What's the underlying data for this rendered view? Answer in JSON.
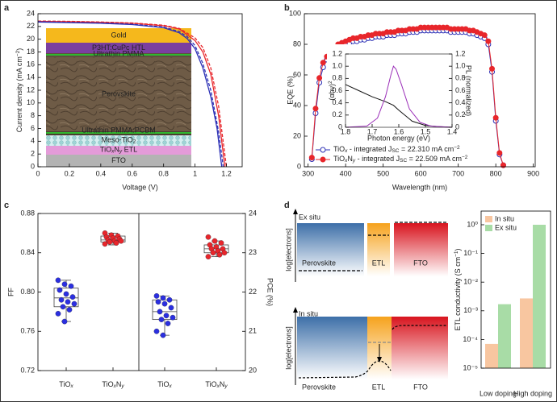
{
  "chart_data": [
    {
      "panel": "a",
      "type": "line",
      "xlabel": "Voltage (V)",
      "ylabel": [
        "Current density (mA cm",
        {
          "sup": "−2"
        },
        ")"
      ],
      "xlim": [
        0,
        1.3
      ],
      "xticks": [
        0,
        0.2,
        0.4,
        0.6,
        0.8,
        1.0,
        1.2
      ],
      "ylim": [
        0,
        24
      ],
      "yticks": [
        0,
        2,
        4,
        6,
        8,
        10,
        12,
        14,
        16,
        18,
        20,
        22,
        24
      ],
      "series": [
        {
          "color": "#e8262b",
          "dash": false,
          "x": [
            0,
            0.2,
            0.4,
            0.6,
            0.8,
            0.9,
            1.0,
            1.05,
            1.1,
            1.15,
            1.19
          ],
          "values": [
            22.8,
            22.75,
            22.65,
            22.5,
            22.1,
            21.6,
            19.8,
            18,
            14.5,
            8,
            0
          ]
        },
        {
          "color": "#e8262b",
          "dash": true,
          "x": [
            0,
            0.2,
            0.4,
            0.6,
            0.8,
            0.9,
            1.0,
            1.05,
            1.1,
            1.15,
            1.2
          ],
          "values": [
            22.85,
            22.8,
            22.7,
            22.55,
            22.2,
            21.7,
            20.2,
            18.7,
            15.5,
            9.5,
            0
          ]
        },
        {
          "color": "#2b2fb5",
          "dash": false,
          "x": [
            0,
            0.2,
            0.4,
            0.6,
            0.8,
            0.9,
            0.95,
            1.0,
            1.05,
            1.1,
            1.14,
            1.17
          ],
          "values": [
            22.7,
            22.6,
            22.5,
            22.3,
            21.8,
            21.0,
            20.1,
            18.5,
            15.5,
            11,
            6,
            0
          ]
        },
        {
          "color": "#2b2fb5",
          "dash": true,
          "x": [
            0,
            0.2,
            0.4,
            0.6,
            0.8,
            0.9,
            0.95,
            1.0,
            1.05,
            1.1,
            1.15,
            1.18
          ],
          "values": [
            22.75,
            22.65,
            22.55,
            22.35,
            21.9,
            21.2,
            20.4,
            19.0,
            16.2,
            12,
            5.5,
            0
          ]
        }
      ],
      "layers": [
        "Gold",
        "P3HT:CuPc HTL",
        "Ultrathin PMMA",
        "Perovskite",
        "Ultrathin PMMA:PCBM",
        [
          "Meso-TiO",
          {
            "sub": "2"
          }
        ],
        [
          "TiO",
          {
            "sub": "x"
          },
          "N",
          {
            "sub": "y"
          },
          " ETL"
        ],
        "FTO"
      ]
    },
    {
      "panel": "b",
      "type": "line",
      "xlabel": "Wavelength (nm)",
      "ylabel": "EQE (%)",
      "xlim": [
        290,
        905
      ],
      "xticks": [
        300,
        400,
        500,
        600,
        700,
        800,
        900
      ],
      "ylim": [
        0,
        100
      ],
      "yticks": [
        0,
        20,
        40,
        60,
        80,
        100
      ],
      "x": [
        310,
        320,
        330,
        340,
        350,
        360,
        370,
        380,
        390,
        400,
        410,
        420,
        430,
        440,
        450,
        460,
        470,
        480,
        490,
        500,
        510,
        520,
        530,
        540,
        550,
        560,
        570,
        580,
        590,
        600,
        610,
        620,
        630,
        640,
        650,
        660,
        670,
        680,
        690,
        700,
        710,
        720,
        730,
        740,
        750,
        760,
        770,
        780,
        790,
        800,
        810,
        820
      ],
      "series": [
        {
          "name": [
            "TiO",
            {
              "sub": "x"
            },
            " - integrated J",
            {
              "sub": "SC"
            },
            " = 22.310 mA cm",
            {
              "sup": "−2"
            }
          ],
          "color": "#2b2fb5",
          "filled": false,
          "values": [
            5,
            35,
            55,
            65,
            70,
            73,
            76,
            78,
            79,
            80,
            81,
            82,
            82,
            83,
            83,
            84,
            84,
            85,
            85,
            85,
            86,
            86,
            86,
            87,
            87,
            87,
            88,
            88,
            88,
            89,
            89,
            89,
            89,
            89,
            89,
            89,
            89,
            88,
            88,
            88,
            88,
            88,
            87,
            87,
            86,
            85,
            84,
            80,
            62,
            30,
            8,
            1
          ]
        },
        {
          "name": [
            "TiO",
            {
              "sub": "x"
            },
            "N",
            {
              "sub": "y"
            },
            " - integrated J",
            {
              "sub": "SC"
            },
            " = 22.509 mA cm",
            {
              "sup": "−2"
            }
          ],
          "color": "#e8262b",
          "filled": true,
          "values": [
            6,
            38,
            58,
            68,
            72,
            75,
            78,
            80,
            81,
            82,
            83,
            84,
            84,
            85,
            85,
            86,
            86,
            87,
            87,
            87,
            88,
            88,
            88,
            89,
            89,
            89,
            90,
            90,
            90,
            91,
            91,
            91,
            91,
            91,
            91,
            91,
            91,
            90,
            90,
            90,
            90,
            90,
            89,
            89,
            88,
            87,
            86,
            82,
            64,
            32,
            9,
            1
          ]
        }
      ]
    },
    {
      "type": "line",
      "xlabel": "Photon energy (eV)",
      "ylabel": [
        "(αhν)",
        {
          "sup": "2"
        }
      ],
      "y2label": "PL (normalized)",
      "xlim": [
        1.8,
        1.4
      ],
      "xticks": [
        1.8,
        1.7,
        1.6,
        1.5,
        1.4
      ],
      "ylim": [
        0,
        1.2
      ],
      "yticks": [
        0,
        0.2,
        0.4,
        0.6,
        0.8,
        {
          "value": 1,
          "label": "1.0"
        },
        1.2
      ],
      "y2lim": [
        0,
        1.2
      ],
      "y2ticks": [
        0,
        0.2,
        0.4,
        0.6,
        0.8,
        {
          "value": 1,
          "label": "1.0"
        },
        1.2
      ],
      "series": [
        {
          "color": "#111111",
          "axis": "y",
          "x": [
            1.8,
            1.75,
            1.7,
            1.65,
            1.62,
            1.6,
            1.55,
            1.5,
            1.45,
            1.4
          ],
          "values": [
            0.7,
            0.6,
            0.5,
            0.42,
            0.36,
            0.28,
            0.1,
            0.03,
            0.01,
            0
          ]
        },
        {
          "color": "#9b2fb8",
          "axis": "y2",
          "x": [
            1.8,
            1.72,
            1.68,
            1.65,
            1.63,
            1.62,
            1.61,
            1.59,
            1.56,
            1.52,
            1.48,
            1.4
          ],
          "values": [
            0,
            0.02,
            0.15,
            0.5,
            0.85,
            1.0,
            0.95,
            0.7,
            0.3,
            0.08,
            0.02,
            0
          ]
        }
      ]
    },
    {
      "panel": "c",
      "type": "box",
      "ylabel": "FF",
      "y2label": "PCE (%)",
      "ylim": [
        0.72,
        0.88
      ],
      "yticks": [
        0.72,
        0.76,
        {
          "value": 0.8,
          "label": "0.80"
        },
        0.84,
        0.88
      ],
      "y2lim": [
        20,
        24
      ],
      "y2ticks": [
        20,
        21,
        22,
        23,
        24
      ],
      "categories": [
        [
          "TiO",
          {
            "sub": "x"
          }
        ],
        [
          "TiO",
          {
            "sub": "x"
          },
          "N",
          {
            "sub": "y"
          }
        ],
        [
          "TiO",
          {
            "sub": "x"
          }
        ],
        [
          "TiO",
          {
            "sub": "x"
          },
          "N",
          {
            "sub": "y"
          }
        ]
      ],
      "boxes": [
        {
          "axis": "y",
          "color": "#2b2fe0",
          "whisker_low": 0.77,
          "q1": 0.785,
          "median": 0.794,
          "q3": 0.804,
          "whisker_high": 0.812,
          "points": [
            0.812,
            0.808,
            0.806,
            0.802,
            0.798,
            0.795,
            0.792,
            0.79,
            0.788,
            0.785,
            0.782,
            0.778,
            0.77
          ]
        },
        {
          "axis": "y",
          "color": "#e8262b",
          "whisker_low": 0.848,
          "q1": 0.851,
          "median": 0.853,
          "q3": 0.857,
          "whisker_high": 0.86,
          "points": [
            0.86,
            0.858,
            0.857,
            0.856,
            0.855,
            0.854,
            0.853,
            0.852,
            0.852,
            0.851,
            0.85,
            0.849
          ]
        },
        {
          "axis": "y2",
          "color": "#2b2fe0",
          "whisker_low": 20.9,
          "q1": 21.3,
          "median": 21.5,
          "q3": 21.8,
          "whisker_high": 21.9,
          "points": [
            21.9,
            21.85,
            21.8,
            21.75,
            21.7,
            21.6,
            21.5,
            21.4,
            21.35,
            21.3,
            21.2,
            21.0,
            20.9
          ]
        },
        {
          "axis": "y2",
          "color": "#e8262b",
          "whisker_low": 22.9,
          "q1": 23.0,
          "median": 23.1,
          "q3": 23.2,
          "whisker_high": 23.3,
          "points": [
            23.4,
            23.3,
            23.25,
            23.2,
            23.15,
            23.1,
            23.1,
            23.05,
            23.0,
            23.0,
            22.95,
            22.9
          ]
        }
      ]
    },
    {
      "type": "bar",
      "log": true,
      "ylabel": [
        "ETL conductivity (S cm",
        {
          "sup": "−1"
        },
        ")"
      ],
      "ylim": [
        1e-05,
        3
      ],
      "yticks": [
        {
          "value": 1e-05,
          "label": "10⁻⁵"
        },
        {
          "value": 0.0001,
          "label": "10⁻⁴"
        },
        {
          "value": 0.001,
          "label": "10⁻³"
        },
        {
          "value": 0.01,
          "label": "10⁻²"
        },
        {
          "value": 0.1,
          "label": "10⁻¹"
        },
        {
          "value": 1,
          "label": "10⁰"
        }
      ],
      "categories": [
        "Low doping",
        "High doping"
      ],
      "legend": "upper left",
      "series": [
        {
          "name": "In situ",
          "color": "#f8c6a0",
          "values": [
            7e-05,
            0.0027
          ]
        },
        {
          "name": "Ex situ",
          "color": "#a8dca6",
          "values": [
            0.0017,
            1
          ]
        }
      ]
    }
  ],
  "diagram": {
    "panel": "d",
    "top": {
      "title": "Ex situ",
      "axis_label": "log[electrons]",
      "blocks": [
        "Perovskite",
        "ETL",
        "FTO"
      ]
    },
    "bottom": {
      "title": "In situ",
      "axis_label": "log[electrons]",
      "blocks": [
        "Perovskite",
        "ETL",
        "FTO"
      ]
    }
  }
}
